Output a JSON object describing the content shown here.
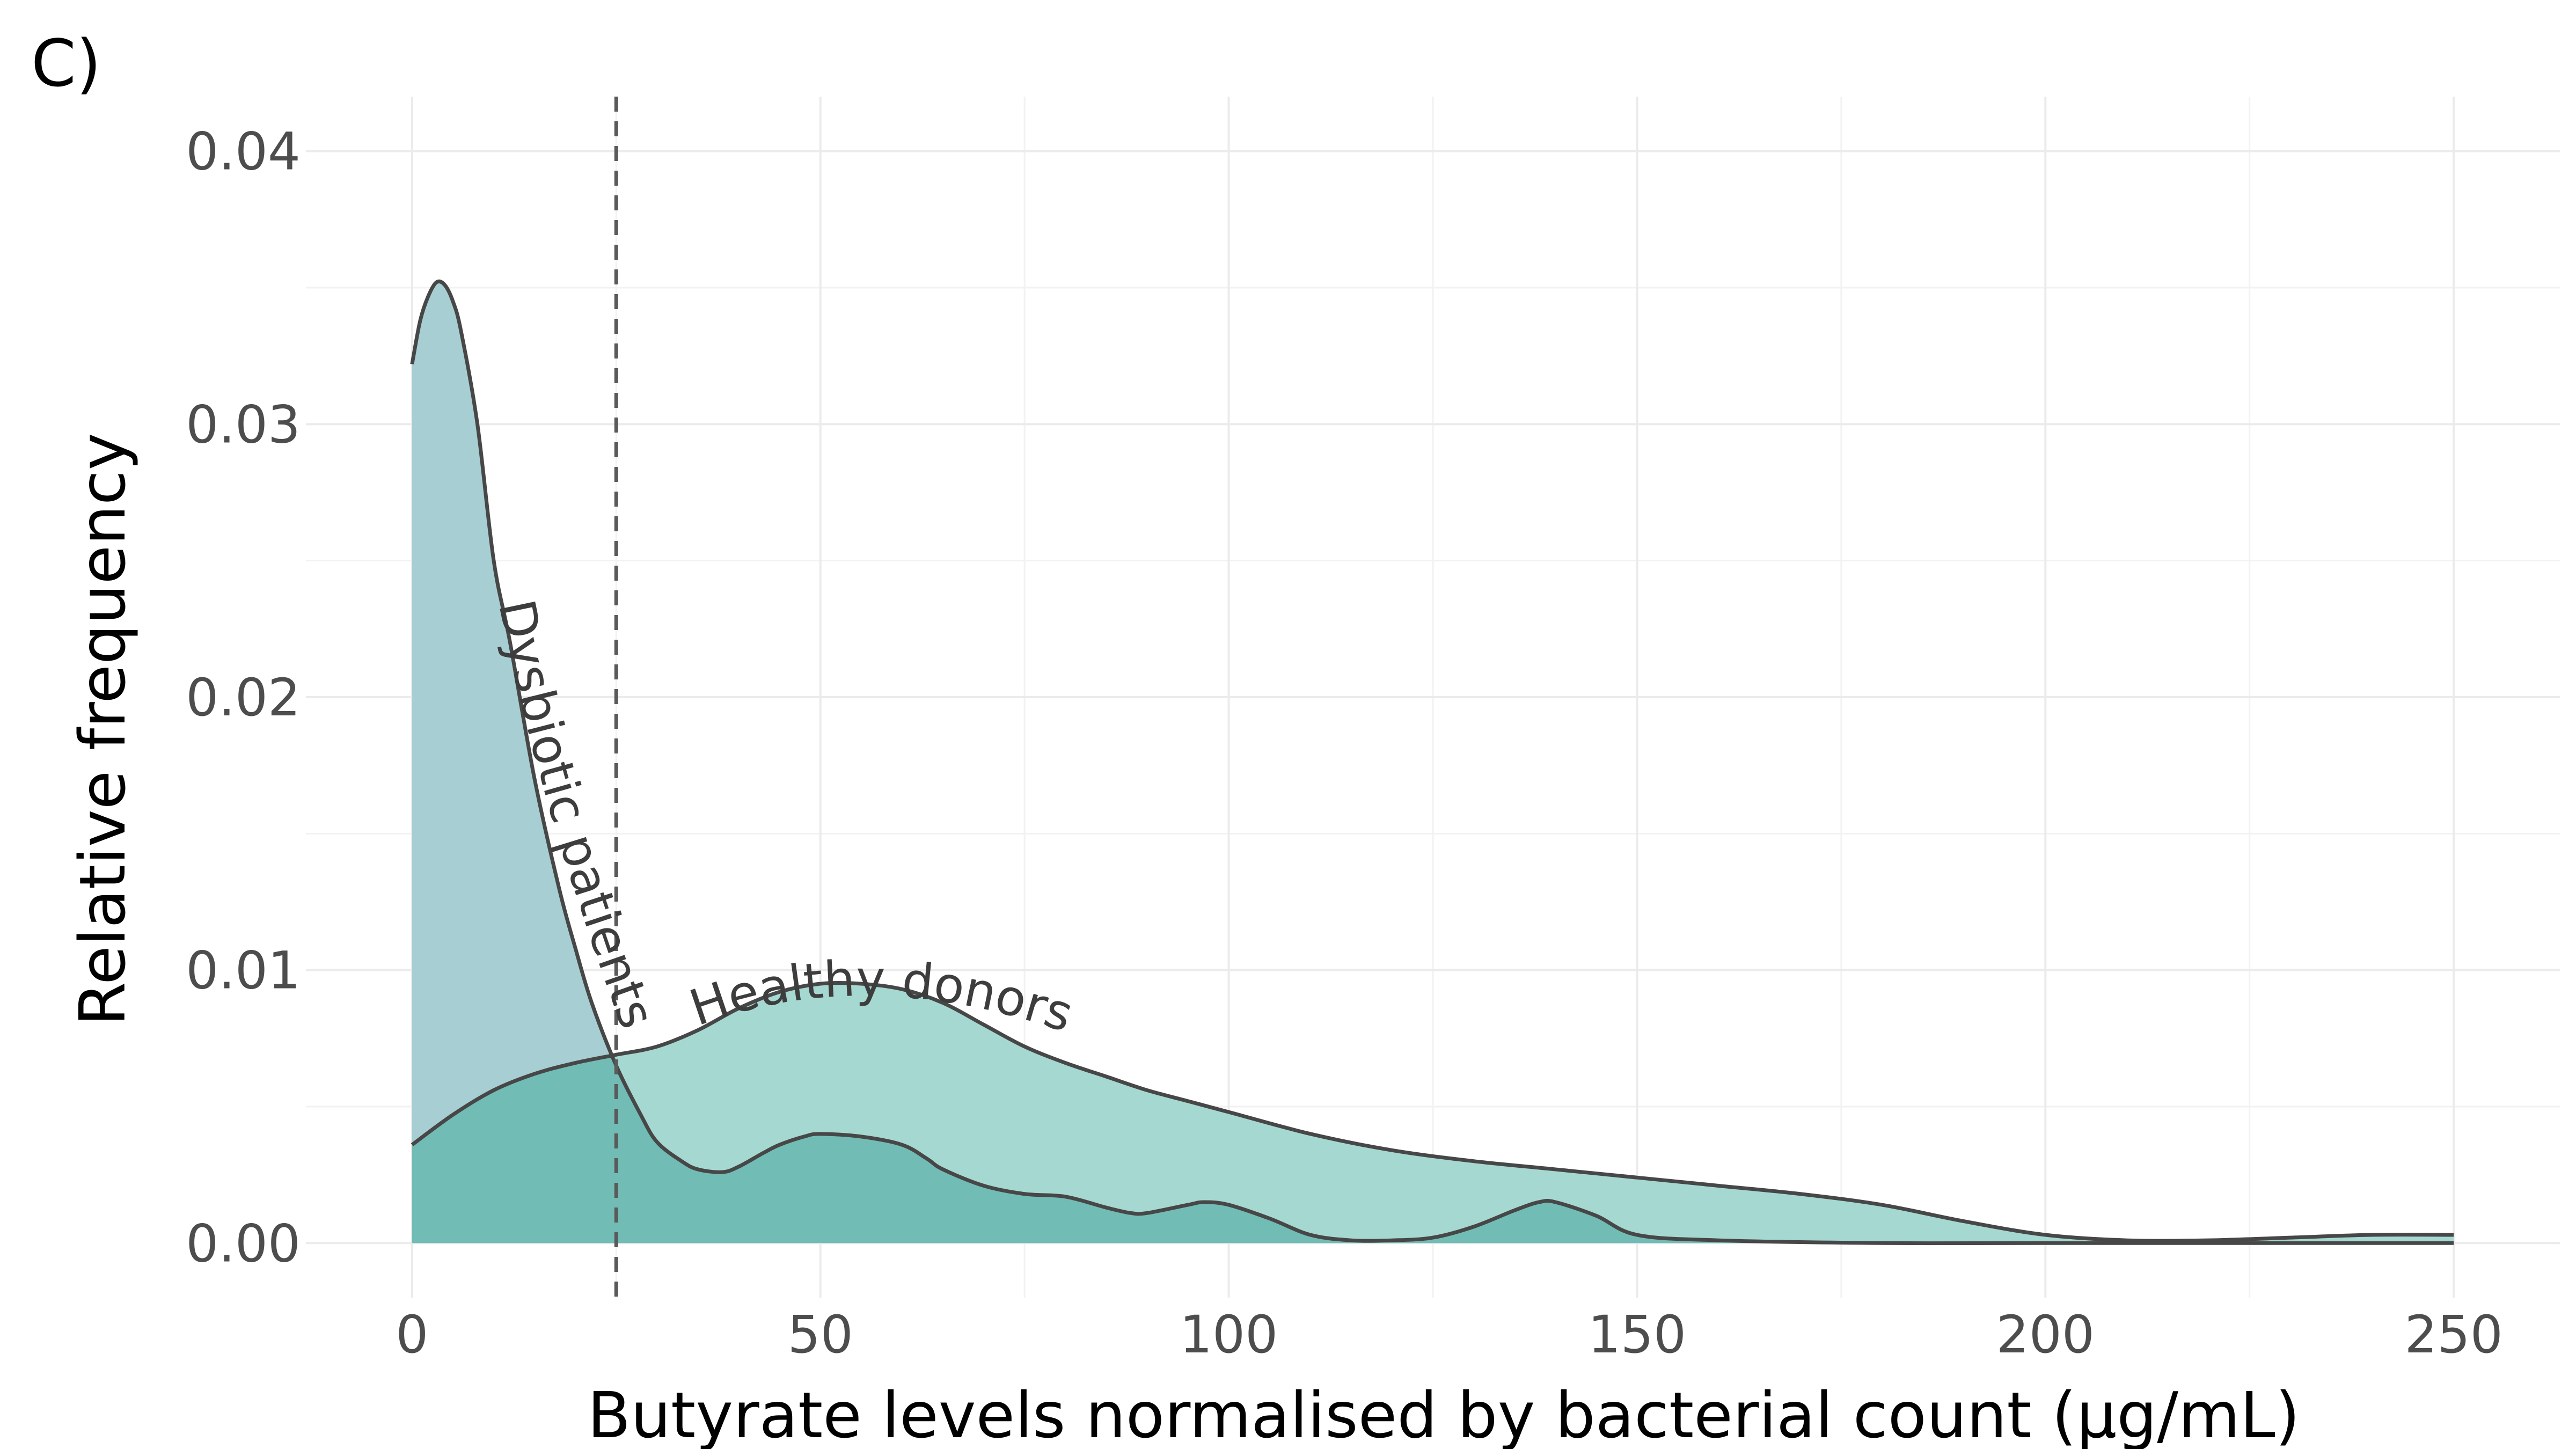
{
  "panel_label": "C)",
  "chart_data": {
    "type": "area",
    "xlabel": "Butyrate levels normalised by bacterial count (µg/mL)",
    "ylabel": "Relative frequency",
    "xlim": [
      -13,
      263
    ],
    "ylim": [
      -0.002,
      0.042
    ],
    "x_ticks": [
      0,
      50,
      100,
      150,
      200,
      250
    ],
    "y_ticks": [
      0.0,
      0.01,
      0.02,
      0.03,
      0.04
    ],
    "x_tick_labels": [
      "0",
      "50",
      "100",
      "150",
      "200",
      "250"
    ],
    "y_tick_labels": [
      "0.00",
      "0.01",
      "0.02",
      "0.03",
      "0.04"
    ],
    "grid": true,
    "threshold_line": {
      "x": 25,
      "style": "dashed"
    },
    "series": [
      {
        "name": "Healthy donors",
        "color": "#a6d8d2",
        "x": [
          0,
          5,
          10,
          15,
          20,
          25,
          30,
          35,
          40,
          45,
          50,
          55,
          60,
          65,
          70,
          75,
          80,
          85,
          90,
          95,
          100,
          110,
          120,
          130,
          140,
          150,
          160,
          170,
          180,
          190,
          200,
          210,
          220,
          230,
          240,
          250
        ],
        "y": [
          0.0036,
          0.0047,
          0.0056,
          0.0062,
          0.0066,
          0.0069,
          0.0072,
          0.0078,
          0.0086,
          0.0092,
          0.0095,
          0.0095,
          0.0093,
          0.0088,
          0.008,
          0.0072,
          0.0066,
          0.0061,
          0.0056,
          0.0052,
          0.0048,
          0.004,
          0.0034,
          0.003,
          0.0027,
          0.0024,
          0.0021,
          0.0018,
          0.0014,
          0.0008,
          0.0003,
          0.0001,
          0.0001,
          0.0002,
          0.0003,
          0.0003
        ]
      },
      {
        "name": "Dysbiotic patients",
        "color": "#a7cfd3",
        "x": [
          0,
          1,
          2,
          3,
          4,
          5,
          6,
          8,
          10,
          12,
          15,
          18,
          20,
          22,
          25,
          28,
          30,
          33,
          35,
          38,
          40,
          43,
          45,
          48,
          50,
          55,
          60,
          63,
          65,
          70,
          75,
          80,
          85,
          88,
          90,
          95,
          97,
          100,
          105,
          110,
          115,
          120,
          125,
          130,
          135,
          138,
          140,
          145,
          150,
          160,
          180,
          200,
          250
        ],
        "y": [
          0.0322,
          0.0338,
          0.0347,
          0.0352,
          0.0351,
          0.0345,
          0.0334,
          0.03,
          0.025,
          0.022,
          0.017,
          0.013,
          0.0108,
          0.0088,
          0.0065,
          0.0047,
          0.0037,
          0.003,
          0.0027,
          0.0026,
          0.0028,
          0.0033,
          0.0036,
          0.0039,
          0.004,
          0.0039,
          0.0036,
          0.0031,
          0.0027,
          0.0021,
          0.0018,
          0.0017,
          0.0013,
          0.0011,
          0.0011,
          0.0014,
          0.0015,
          0.0014,
          0.0009,
          0.0003,
          0.0001,
          0.0001,
          0.0002,
          0.0006,
          0.0012,
          0.0015,
          0.0015,
          0.001,
          0.0003,
          0.0001,
          0.0,
          0.0,
          0.0
        ]
      }
    ],
    "overlap_color": "#72bcb6",
    "line_color": "#474747"
  }
}
